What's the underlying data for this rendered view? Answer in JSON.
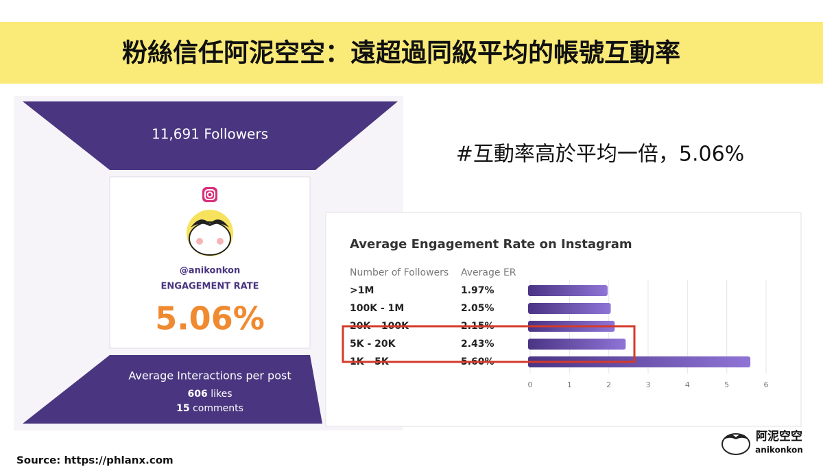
{
  "header": {
    "title": "粉絲信任阿泥空空：遠超過同級平均的帳號互動率"
  },
  "profile": {
    "followers": "11,691 Followers",
    "handle": "@anikonkon",
    "label": "ENGAGEMENT RATE",
    "rate": "5.06%",
    "interactions_title": "Average Interactions per post",
    "likes_count": "606",
    "likes_unit": "likes",
    "comments_count": "15",
    "comments_unit": "comments"
  },
  "subtitle": "#互動率高於平均一倍，5.06%",
  "chart_data": {
    "type": "bar",
    "orientation": "horizontal",
    "title": "Average Engagement Rate on Instagram",
    "column_headers": [
      "Number of Followers",
      "Average ER"
    ],
    "categories": [
      ">1M",
      "100K - 1M",
      "20K - 100K",
      "5K - 20K",
      "1K - 5K"
    ],
    "values": [
      1.97,
      2.05,
      2.15,
      2.43,
      5.6
    ],
    "value_labels": [
      "1.97%",
      "2.05%",
      "2.15%",
      "2.43%",
      "5.60%"
    ],
    "color": "#5b3fa0",
    "xlim": [
      0,
      6
    ],
    "xticks": [
      0,
      1,
      2,
      3,
      4,
      5,
      6
    ],
    "grid": true
  },
  "source": "Source: https://phlanx.com",
  "logo": {
    "name": "阿泥空空",
    "handle": "anikonkon"
  }
}
